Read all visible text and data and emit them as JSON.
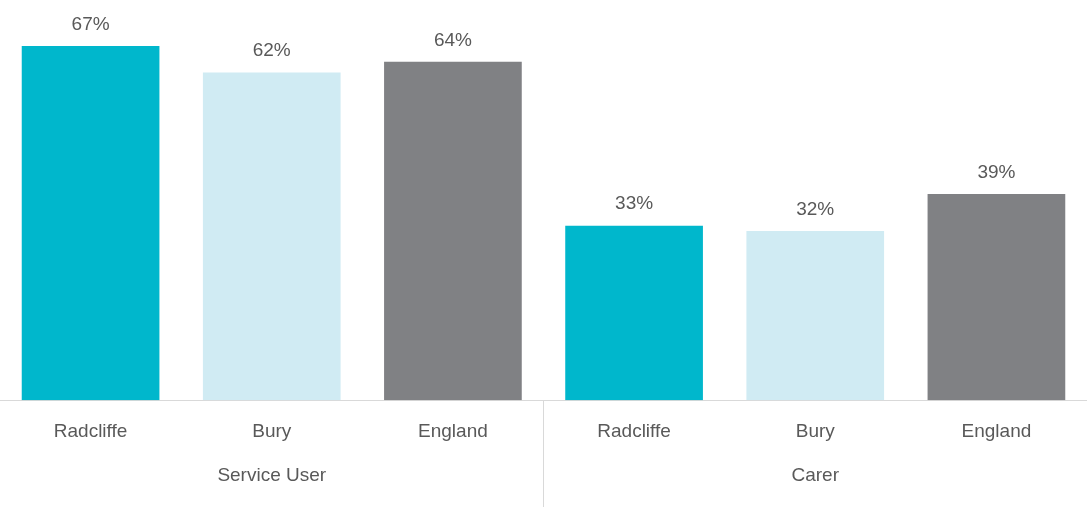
{
  "chart_data": {
    "type": "bar",
    "categories": [
      "Radcliffe",
      "Bury",
      "England",
      "Radcliffe",
      "Bury",
      "England"
    ],
    "values": [
      67,
      62,
      64,
      33,
      32,
      39
    ],
    "colors": [
      "#00b7cc",
      "#d0ebf3",
      "#808184",
      "#00b7cc",
      "#d0ebf3",
      "#808184"
    ],
    "value_labels": [
      "67%",
      "62%",
      "64%",
      "33%",
      "32%",
      "39%"
    ],
    "annotations": [
      "Service User",
      "Carer"
    ],
    "grid": false,
    "legend": false
  }
}
